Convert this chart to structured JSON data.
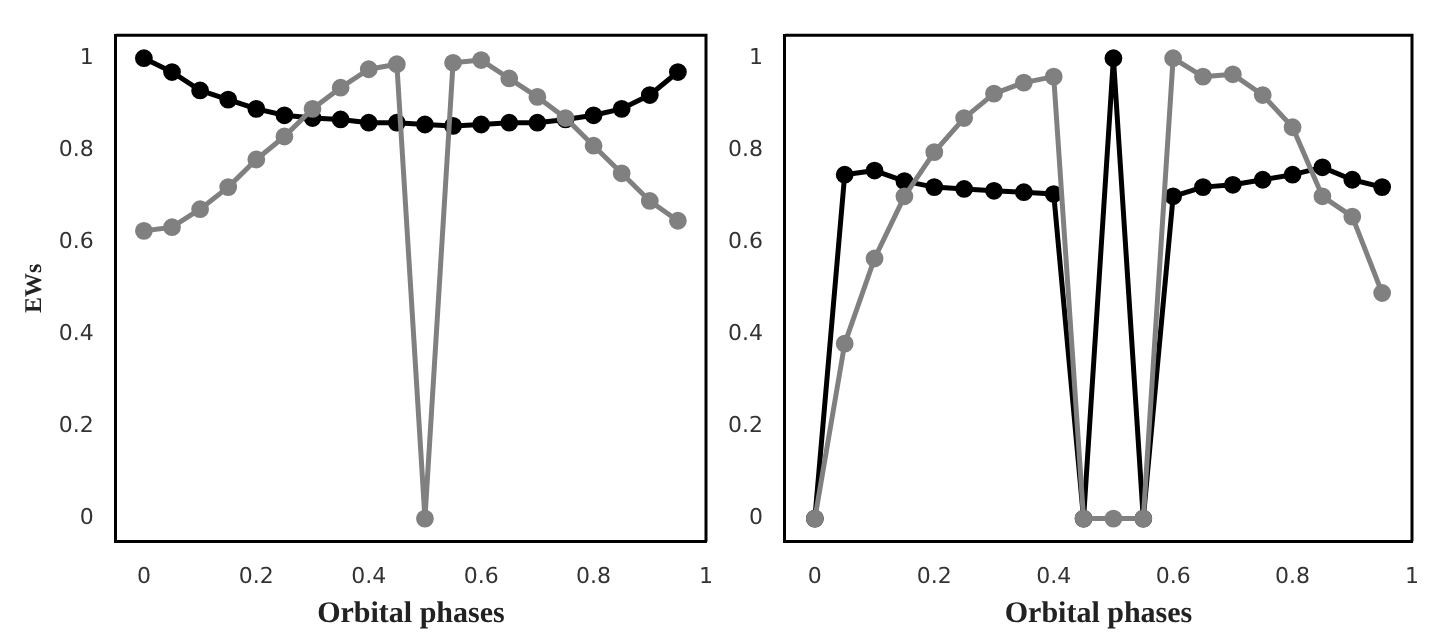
{
  "chart_data": [
    {
      "type": "line",
      "xlabel": "Orbital phases",
      "ylabel": "EWs",
      "x": [
        0,
        0.05,
        0.1,
        0.15,
        0.2,
        0.25,
        0.3,
        0.35,
        0.4,
        0.45,
        0.5,
        0.55,
        0.6,
        0.65,
        0.7,
        0.75,
        0.8,
        0.85,
        0.9,
        0.95
      ],
      "xlim": [
        -0.05,
        1
      ],
      "ylim": [
        -0.05,
        1.05
      ],
      "xticks": [
        0,
        0.2,
        0.4,
        0.6,
        0.8,
        1
      ],
      "yticks": [
        0,
        0.2,
        0.4,
        0.6,
        0.8,
        1
      ],
      "grid": false,
      "legend": false,
      "marker": "circle",
      "line_style": "solid",
      "series": [
        {
          "color": "#808080",
          "values": [
            0.625,
            0.633,
            0.672,
            0.72,
            0.78,
            0.83,
            0.89,
            0.936,
            0.976,
            0.987,
            0,
            0.99,
            0.996,
            0.956,
            0.916,
            0.87,
            0.81,
            0.75,
            0.69,
            0.647
          ]
        },
        {
          "color": "#000000",
          "values": [
            1,
            0.97,
            0.93,
            0.91,
            0.89,
            0.876,
            0.87,
            0.867,
            0.86,
            0.86,
            0.856,
            0.853,
            0.856,
            0.86,
            0.86,
            0.867,
            0.876,
            0.89,
            0.92,
            0.97
          ]
        }
      ]
    },
    {
      "type": "line",
      "xlabel": "Orbital phases",
      "x": [
        0,
        0.05,
        0.1,
        0.15,
        0.2,
        0.25,
        0.3,
        0.35,
        0.4,
        0.45,
        0.5,
        0.55,
        0.6,
        0.65,
        0.7,
        0.75,
        0.8,
        0.85,
        0.9,
        0.95
      ],
      "xlim": [
        -0.05,
        1
      ],
      "ylim": [
        -0.05,
        1.05
      ],
      "xticks": [
        0,
        0.2,
        0.4,
        0.6,
        0.8,
        1
      ],
      "yticks": [
        0,
        0.2,
        0.4,
        0.6,
        0.8,
        1
      ],
      "grid": false,
      "legend": false,
      "marker": "circle",
      "line_style": "solid",
      "series": [
        {
          "color": "#808080",
          "values": [
            0,
            0.38,
            0.565,
            0.7,
            0.796,
            0.87,
            0.923,
            0.947,
            0.96,
            0,
            0,
            0,
            1,
            0.96,
            0.965,
            0.92,
            0.85,
            0.7,
            0.656,
            0.49
          ]
        },
        {
          "color": "#000000",
          "values": [
            0,
            0.747,
            0.756,
            0.733,
            0.72,
            0.716,
            0.712,
            0.709,
            0.705,
            0,
            1,
            0,
            0.7,
            0.72,
            0.725,
            0.736,
            0.747,
            0.763,
            0.736,
            0.72
          ]
        }
      ]
    }
  ]
}
